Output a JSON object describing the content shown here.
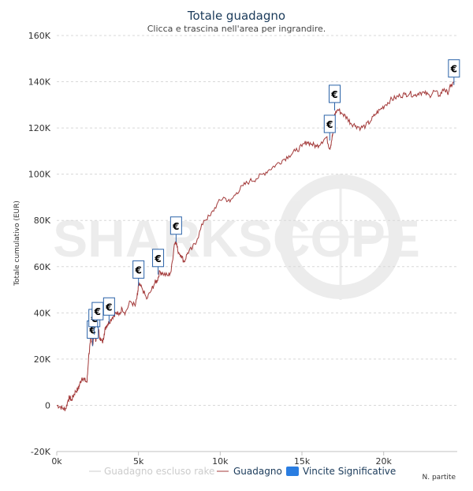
{
  "chart_data": {
    "type": "line",
    "title": "Totale guadagno",
    "subtitle": "Clicca e trascina nell'area per ingrandire.",
    "xlabel": "N. partite",
    "ylabel": "Totale cumulativo (EUR)",
    "xlim": [
      0,
      24500
    ],
    "ylim": [
      -20000,
      160000
    ],
    "x_ticks": [
      0,
      5000,
      10000,
      15000,
      20000
    ],
    "x_tick_labels": [
      "0k",
      "5k",
      "10k",
      "15k",
      "20k"
    ],
    "y_ticks": [
      -20000,
      0,
      20000,
      40000,
      60000,
      80000,
      100000,
      120000,
      140000,
      160000
    ],
    "y_tick_labels": [
      "-20K",
      "0",
      "20K",
      "40K",
      "60K",
      "80K",
      "100K",
      "120K",
      "140K",
      "160K"
    ],
    "grid": true,
    "legend_position": "bottom",
    "watermark": "SHARKSCOPE",
    "series": [
      {
        "name": "Guadagno escluso rake",
        "color": "#cccccc",
        "values": []
      },
      {
        "name": "Guadagno",
        "color": "#a33a3a",
        "x": [
          0,
          200,
          400,
          550,
          700,
          800,
          900,
          1000,
          1150,
          1300,
          1400,
          1550,
          1700,
          1850,
          1950,
          2050,
          2100,
          2200,
          2300,
          2400,
          2500,
          2650,
          2800,
          2900,
          3000,
          3100,
          3200,
          3400,
          3600,
          3800,
          4000,
          4200,
          4500,
          4800,
          4950,
          5000,
          5200,
          5500,
          5800,
          6000,
          6150,
          6300,
          6500,
          6800,
          7000,
          7200,
          7300,
          7400,
          7600,
          7800,
          8000,
          8300,
          8600,
          9000,
          9400,
          9800,
          10200,
          10600,
          11000,
          11400,
          11800,
          12200,
          12600,
          13000,
          13400,
          13800,
          14200,
          14600,
          15000,
          15300,
          15600,
          15900,
          16200,
          16500,
          16700,
          16800,
          16900,
          17000,
          17200,
          17500,
          17800,
          18000,
          18300,
          18600,
          18900,
          19200,
          19500,
          19800,
          20100,
          20400,
          20700,
          21000,
          21300,
          21600,
          21900,
          22200,
          22500,
          22800,
          23100,
          23400,
          23700,
          23900,
          24100,
          24300
        ],
        "values": [
          0,
          -500,
          -1500,
          -1500,
          2500,
          3500,
          2000,
          4000,
          6000,
          7000,
          9000,
          12000,
          11000,
          10000,
          21000,
          27000,
          30000,
          26000,
          31000,
          28000,
          34000,
          29000,
          27000,
          31000,
          34000,
          35000,
          36000,
          38000,
          40000,
          39000,
          42000,
          40000,
          45000,
          43000,
          48000,
          52000,
          51000,
          46000,
          50000,
          53000,
          54000,
          58000,
          57000,
          56000,
          58000,
          70000,
          71000,
          67000,
          65000,
          62000,
          66000,
          68000,
          72000,
          80000,
          82000,
          87000,
          90000,
          88000,
          92000,
          95000,
          97000,
          98000,
          100000,
          102000,
          104000,
          106000,
          108000,
          110000,
          112000,
          114000,
          113000,
          112000,
          114000,
          116000,
          111000,
          114000,
          118000,
          126000,
          128000,
          126000,
          124000,
          122000,
          121000,
          120000,
          121000,
          123000,
          126000,
          128000,
          130000,
          132000,
          133000,
          134000,
          134500,
          135000,
          134000,
          135500,
          135000,
          134000,
          136000,
          134000,
          137000,
          135000,
          138000,
          140000
        ]
      }
    ],
    "flags": {
      "name": "Vincite Significative",
      "symbol": "€",
      "color": "#2a62a8",
      "points": [
        {
          "x": 2200,
          "y": 29000
        },
        {
          "x": 2300,
          "y": 34000
        },
        {
          "x": 2500,
          "y": 37000
        },
        {
          "x": 3200,
          "y": 39000
        },
        {
          "x": 5000,
          "y": 55000
        },
        {
          "x": 6200,
          "y": 60000
        },
        {
          "x": 7300,
          "y": 74000
        },
        {
          "x": 16700,
          "y": 118000
        },
        {
          "x": 17000,
          "y": 131000
        },
        {
          "x": 24300,
          "y": 142000
        }
      ]
    }
  }
}
